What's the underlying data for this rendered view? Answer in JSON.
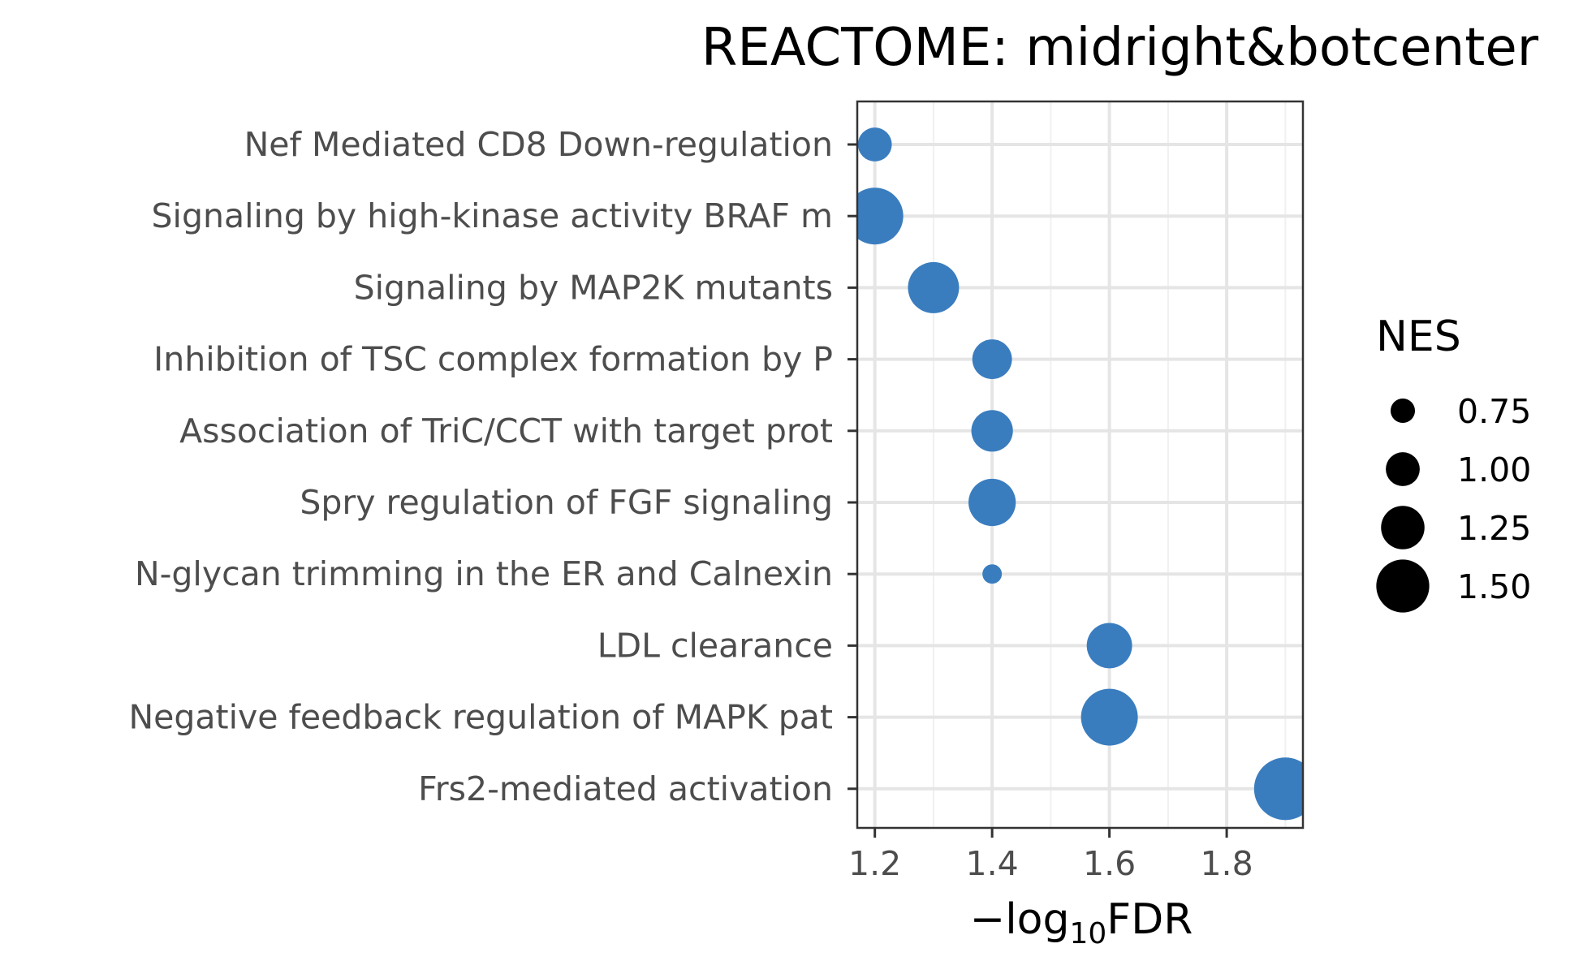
{
  "chart_data": {
    "type": "scatter",
    "title": "REACTOME: midright&botcenter",
    "xlabel": {
      "prefix": "−log",
      "sub": "10",
      "suffix": "FDR"
    },
    "ylabel": "",
    "xlim": [
      1.17,
      1.93
    ],
    "x_ticks": [
      1.2,
      1.4,
      1.6,
      1.8
    ],
    "x_tick_labels": [
      "1.2",
      "1.4",
      "1.6",
      "1.8"
    ],
    "categories": [
      "Nef Mediated CD8 Down-regulation",
      "Signaling by high-kinase activity BRAF m",
      "Signaling by MAP2K mutants",
      "Inhibition of TSC complex formation by P",
      "Association of TriC/CCT with target prot",
      "Spry regulation of FGF signaling",
      "N-glycan trimming in the ER and Calnexin",
      "LDL clearance",
      "Negative feedback regulation of MAPK pat",
      "Frs2-mediated activation"
    ],
    "x": [
      1.2,
      1.2,
      1.3,
      1.4,
      1.4,
      1.4,
      1.4,
      1.6,
      1.6,
      1.9
    ],
    "size": [
      1.0,
      1.6,
      1.45,
      1.15,
      1.2,
      1.35,
      0.62,
      1.3,
      1.6,
      1.75
    ],
    "size_variable": "NES",
    "point_color": "#3a7dbf",
    "grid": true,
    "legend": {
      "title": "NES",
      "position": "right",
      "values": [
        0.75,
        1.0,
        1.25,
        1.5
      ],
      "labels": [
        "0.75",
        "1.00",
        "1.25",
        "1.50"
      ]
    }
  }
}
